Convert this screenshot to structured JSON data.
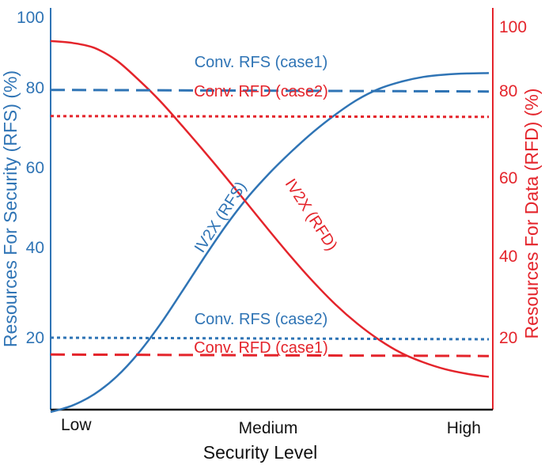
{
  "chart_data": {
    "type": "line",
    "xlabel": "Security Level",
    "ylabel_left": "Resources For Security (RFS) (%)",
    "ylabel_right": "Resources For Data (RFD) (%)",
    "x_categories": [
      "Low",
      "Medium",
      "High"
    ],
    "ylim_left": [
      0,
      100
    ],
    "ylim_right": [
      0,
      100
    ],
    "yticks_left": [
      "20",
      "40",
      "60",
      "80",
      "100"
    ],
    "yticks_right": [
      "20",
      "40",
      "60",
      "80",
      "100"
    ],
    "grid": false,
    "colors": {
      "rfs": "#2f74b5",
      "rfd": "#e4242b"
    },
    "series": [
      {
        "name": "IV2X (RFS)",
        "axis": "left",
        "style": "solid",
        "color": "#2f74b5",
        "x": [
          0,
          0.05,
          0.1,
          0.15,
          0.2,
          0.25,
          0.3,
          0.35,
          0.4,
          0.45,
          0.5,
          0.55,
          0.6,
          0.65,
          0.7,
          0.75,
          0.8,
          0.85,
          0.9,
          0.95,
          1
        ],
        "y": [
          1.4,
          3.1,
          6.0,
          10.4,
          16.4,
          23.8,
          32.2,
          40.8,
          49.0,
          56.3,
          62.5,
          68.0,
          73.0,
          77.4,
          81.2,
          84.0,
          85.8,
          87.0,
          87.6,
          87.9,
          88.0
        ]
      },
      {
        "name": "IV2X (RFD)",
        "axis": "right",
        "style": "solid",
        "color": "#e4242b",
        "x": [
          0,
          0.05,
          0.1,
          0.15,
          0.2,
          0.25,
          0.3,
          0.35,
          0.4,
          0.45,
          0.5,
          0.55,
          0.6,
          0.65,
          0.7,
          0.75,
          0.8,
          0.85,
          0.9,
          0.95,
          1
        ],
        "y": [
          96.0,
          95.5,
          94.2,
          91.0,
          86.0,
          80.4,
          74.0,
          67.4,
          60.6,
          53.6,
          46.6,
          39.8,
          33.4,
          27.6,
          22.6,
          18.4,
          15.0,
          12.6,
          10.8,
          9.6,
          8.8
        ]
      },
      {
        "name": "Conv. RFS (case1)",
        "axis": "left",
        "style": "dashed",
        "color": "#2f74b5",
        "x": [
          0,
          1
        ],
        "y": [
          83.7,
          83.3
        ]
      },
      {
        "name": "Conv. RFD (case2)",
        "axis": "right",
        "style": "dotted",
        "color": "#e4242b",
        "x": [
          0,
          1
        ],
        "y": [
          76.5,
          76.3
        ]
      },
      {
        "name": "Conv. RFS (case2)",
        "axis": "left",
        "style": "dotted",
        "color": "#2f74b5",
        "x": [
          0,
          1
        ],
        "y": [
          20.4,
          20.0
        ]
      },
      {
        "name": "Conv. RFD (case1)",
        "axis": "right",
        "style": "dashed",
        "color": "#e4242b",
        "x": [
          0,
          1
        ],
        "y": [
          14.6,
          14.2
        ]
      }
    ]
  }
}
